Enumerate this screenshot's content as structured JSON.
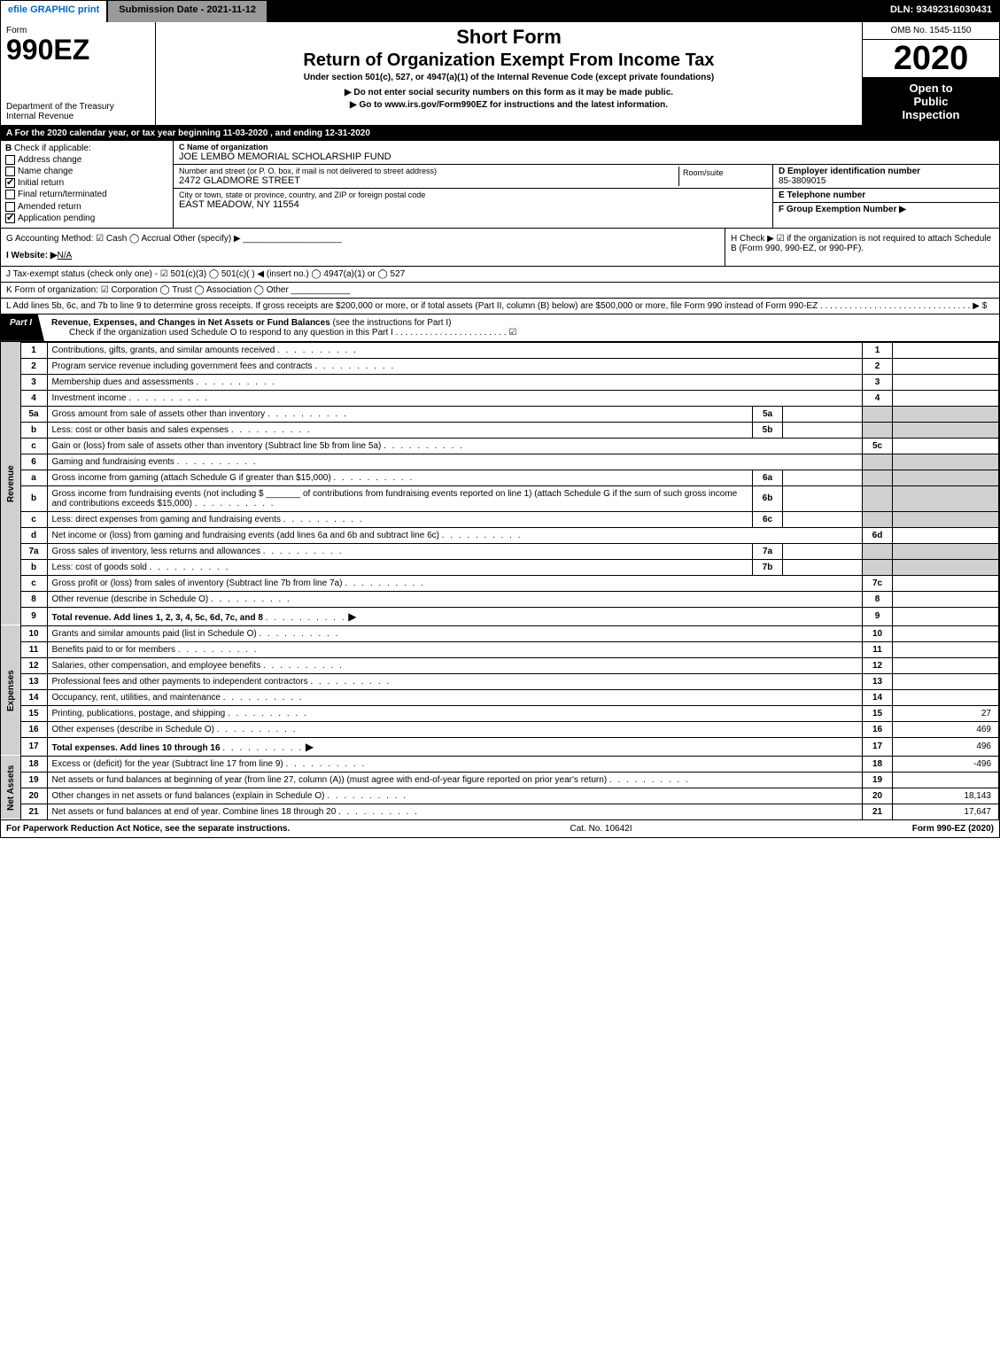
{
  "top": {
    "efile": "efile GRAPHIC print",
    "submission": "Submission Date - 2021-11-12",
    "dln": "DLN: 93492316030431"
  },
  "header": {
    "form_label": "Form",
    "form_num": "990EZ",
    "dept": "Department of the Treasury",
    "irs": "Internal Revenue",
    "short_form": "Short Form",
    "main_title": "Return of Organization Exempt From Income Tax",
    "subtitle": "Under section 501(c), 527, or 4947(a)(1) of the Internal Revenue Code (except private foundations)",
    "instr1": "▶ Do not enter social security numbers on this form as it may be made public.",
    "instr2_pre": "▶ Go to ",
    "instr2_link": "www.irs.gov/Form990EZ",
    "instr2_post": " for instructions and the latest information.",
    "omb": "OMB No. 1545-1150",
    "year": "2020",
    "inspect1": "Open to",
    "inspect2": "Public",
    "inspect3": "Inspection"
  },
  "row_a": "A  For the 2020 calendar year, or tax year beginning 11-03-2020 , and ending 12-31-2020",
  "section_b": {
    "title": "B",
    "check_label": "Check if applicable:",
    "items": [
      "Address change",
      "Name change",
      "Initial return",
      "Final return/terminated",
      "Amended return",
      "Application pending"
    ],
    "checked_idx": [
      2,
      5
    ]
  },
  "section_c": {
    "lbl": "C Name of organization",
    "name": "JOE LEMBO MEMORIAL SCHOLARSHIP FUND",
    "street_lbl": "Number and street (or P. O. box, if mail is not delivered to street address)",
    "street": "2472 GLADMORE STREET",
    "room_lbl": "Room/suite",
    "city_lbl": "City or town, state or province, country, and ZIP or foreign postal code",
    "city": "EAST MEADOW, NY  11554"
  },
  "section_d": {
    "lbl": "D Employer identification number",
    "val": "85-3809015"
  },
  "section_e": {
    "lbl": "E Telephone number",
    "val": ""
  },
  "section_f": {
    "lbl": "F Group Exemption Number  ▶",
    "val": ""
  },
  "row_g": "G Accounting Method:   ☑ Cash   ◯ Accrual   Other (specify) ▶ ____________________",
  "row_h": "H   Check ▶  ☑  if the organization is not required to attach Schedule B (Form 990, 990-EZ, or 990-PF).",
  "row_i_lbl": "I Website: ▶",
  "row_i_val": "N/A",
  "row_j": "J Tax-exempt status (check only one) -  ☑ 501(c)(3)  ◯ 501(c)(  ) ◀ (insert no.)  ◯ 4947(a)(1) or  ◯ 527",
  "row_k": "K Form of organization:   ☑ Corporation   ◯ Trust   ◯ Association   ◯ Other  ____________",
  "row_l": "L Add lines 5b, 6c, and 7b to line 9 to determine gross receipts. If gross receipts are $200,000 or more, or if total assets (Part II, column (B) below) are $500,000 or more, file Form 990 instead of Form 990-EZ  .  .  .  .  .  .  .  .  .  .  .  .  .  .  .  .  .  .  .  .  .  .  .  .  .  .  .  .  .  .  .  ▶ $",
  "part1": {
    "tab": "Part I",
    "title": "Revenue, Expenses, and Changes in Net Assets or Fund Balances",
    "title_paren": "(see the instructions for Part I)",
    "sub": "Check if the organization used Schedule O to respond to any question in this Part I .  .  .  .  .  .  .  .  .  .  .  .  .  .  .  .  .  .  .  .  .  .  .   ☑"
  },
  "side_labels": {
    "revenue": "Revenue",
    "expenses": "Expenses",
    "net": "Net Assets"
  },
  "revenue_lines": [
    {
      "n": "1",
      "d": "Contributions, gifts, grants, and similar amounts received",
      "r": "1",
      "v": ""
    },
    {
      "n": "2",
      "d": "Program service revenue including government fees and contracts",
      "r": "2",
      "v": ""
    },
    {
      "n": "3",
      "d": "Membership dues and assessments",
      "r": "3",
      "v": ""
    },
    {
      "n": "4",
      "d": "Investment income",
      "r": "4",
      "v": ""
    },
    {
      "n": "5a",
      "d": "Gross amount from sale of assets other than inventory",
      "sub": "5a",
      "sv": "",
      "shade": true
    },
    {
      "n": "b",
      "d": "Less: cost or other basis and sales expenses",
      "sub": "5b",
      "sv": "",
      "shade": true
    },
    {
      "n": "c",
      "d": "Gain or (loss) from sale of assets other than inventory (Subtract line 5b from line 5a)",
      "r": "5c",
      "v": ""
    },
    {
      "n": "6",
      "d": "Gaming and fundraising events",
      "shade": true,
      "noright": true
    },
    {
      "n": "a",
      "d": "Gross income from gaming (attach Schedule G if greater than $15,000)",
      "sub": "6a",
      "sv": "",
      "shade": true
    },
    {
      "n": "b",
      "d": "Gross income from fundraising events (not including $ _______ of contributions from fundraising events reported on line 1) (attach Schedule G if the sum of such gross income and contributions exceeds $15,000)",
      "sub": "6b",
      "sv": "",
      "shade": true
    },
    {
      "n": "c",
      "d": "Less: direct expenses from gaming and fundraising events",
      "sub": "6c",
      "sv": "",
      "shade": true
    },
    {
      "n": "d",
      "d": "Net income or (loss) from gaming and fundraising events (add lines 6a and 6b and subtract line 6c)",
      "r": "6d",
      "v": ""
    },
    {
      "n": "7a",
      "d": "Gross sales of inventory, less returns and allowances",
      "sub": "7a",
      "sv": "",
      "shade": true
    },
    {
      "n": "b",
      "d": "Less: cost of goods sold",
      "sub": "7b",
      "sv": "",
      "shade": true
    },
    {
      "n": "c",
      "d": "Gross profit or (loss) from sales of inventory (Subtract line 7b from line 7a)",
      "r": "7c",
      "v": ""
    },
    {
      "n": "8",
      "d": "Other revenue (describe in Schedule O)",
      "r": "8",
      "v": ""
    },
    {
      "n": "9",
      "d": "Total revenue. Add lines 1, 2, 3, 4, 5c, 6d, 7c, and 8",
      "r": "9",
      "v": "",
      "bold": true,
      "arrow": true
    }
  ],
  "expense_lines": [
    {
      "n": "10",
      "d": "Grants and similar amounts paid (list in Schedule O)",
      "r": "10",
      "v": ""
    },
    {
      "n": "11",
      "d": "Benefits paid to or for members",
      "r": "11",
      "v": ""
    },
    {
      "n": "12",
      "d": "Salaries, other compensation, and employee benefits",
      "r": "12",
      "v": ""
    },
    {
      "n": "13",
      "d": "Professional fees and other payments to independent contractors",
      "r": "13",
      "v": ""
    },
    {
      "n": "14",
      "d": "Occupancy, rent, utilities, and maintenance",
      "r": "14",
      "v": ""
    },
    {
      "n": "15",
      "d": "Printing, publications, postage, and shipping",
      "r": "15",
      "v": "27"
    },
    {
      "n": "16",
      "d": "Other expenses (describe in Schedule O)",
      "r": "16",
      "v": "469"
    },
    {
      "n": "17",
      "d": "Total expenses. Add lines 10 through 16",
      "r": "17",
      "v": "496",
      "bold": true,
      "arrow": true
    }
  ],
  "net_lines": [
    {
      "n": "18",
      "d": "Excess or (deficit) for the year (Subtract line 17 from line 9)",
      "r": "18",
      "v": "-496"
    },
    {
      "n": "19",
      "d": "Net assets or fund balances at beginning of year (from line 27, column (A)) (must agree with end-of-year figure reported on prior year's return)",
      "r": "19",
      "v": ""
    },
    {
      "n": "20",
      "d": "Other changes in net assets or fund balances (explain in Schedule O)",
      "r": "20",
      "v": "18,143"
    },
    {
      "n": "21",
      "d": "Net assets or fund balances at end of year. Combine lines 18 through 20",
      "r": "21",
      "v": "17,647"
    }
  ],
  "footer": {
    "left": "For Paperwork Reduction Act Notice, see the separate instructions.",
    "mid": "Cat. No. 10642I",
    "right_pre": "Form ",
    "right_bold": "990-EZ",
    "right_post": " (2020)"
  },
  "colors": {
    "header_black": "#000000",
    "shade": "#d0d0d0",
    "link": "#0066cc"
  }
}
